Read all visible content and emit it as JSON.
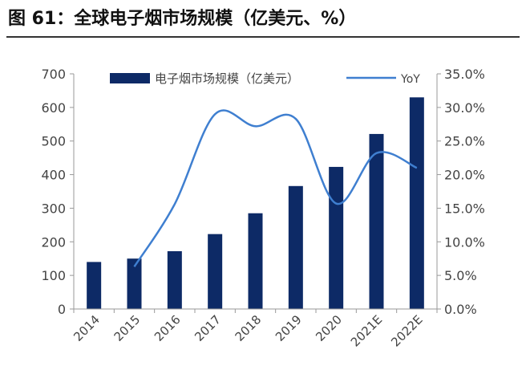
{
  "title": "图 61：全球电子烟市场规模（亿美元、%）",
  "colors": {
    "bar": "#0d2a66",
    "line": "#3f7fd0",
    "axis": "#999999",
    "text": "#444444"
  },
  "chart_data": {
    "type": "bar",
    "categories": [
      "2014",
      "2015",
      "2016",
      "2017",
      "2018",
      "2019",
      "2020",
      "2021E",
      "2022E"
    ],
    "series": [
      {
        "name": "电子烟市场规模（亿美元）",
        "type": "bar",
        "axis": "left",
        "values": [
          140,
          150,
          172,
          223,
          285,
          366,
          423,
          521,
          630
        ]
      },
      {
        "name": "YoY",
        "type": "line",
        "axis": "right",
        "smooth": true,
        "values": [
          null,
          0.063,
          0.156,
          0.29,
          0.272,
          0.283,
          0.157,
          0.232,
          0.21
        ]
      }
    ],
    "ylim_left": [
      0,
      700
    ],
    "yticks_left": [
      0,
      100,
      200,
      300,
      400,
      500,
      600,
      700
    ],
    "ylim_right": [
      0,
      0.35
    ],
    "yticks_right": [
      "0.0%",
      "5.0%",
      "10.0%",
      "15.0%",
      "20.0%",
      "25.0%",
      "30.0%",
      "35.0%"
    ],
    "legend_position": "top",
    "grid": false
  }
}
